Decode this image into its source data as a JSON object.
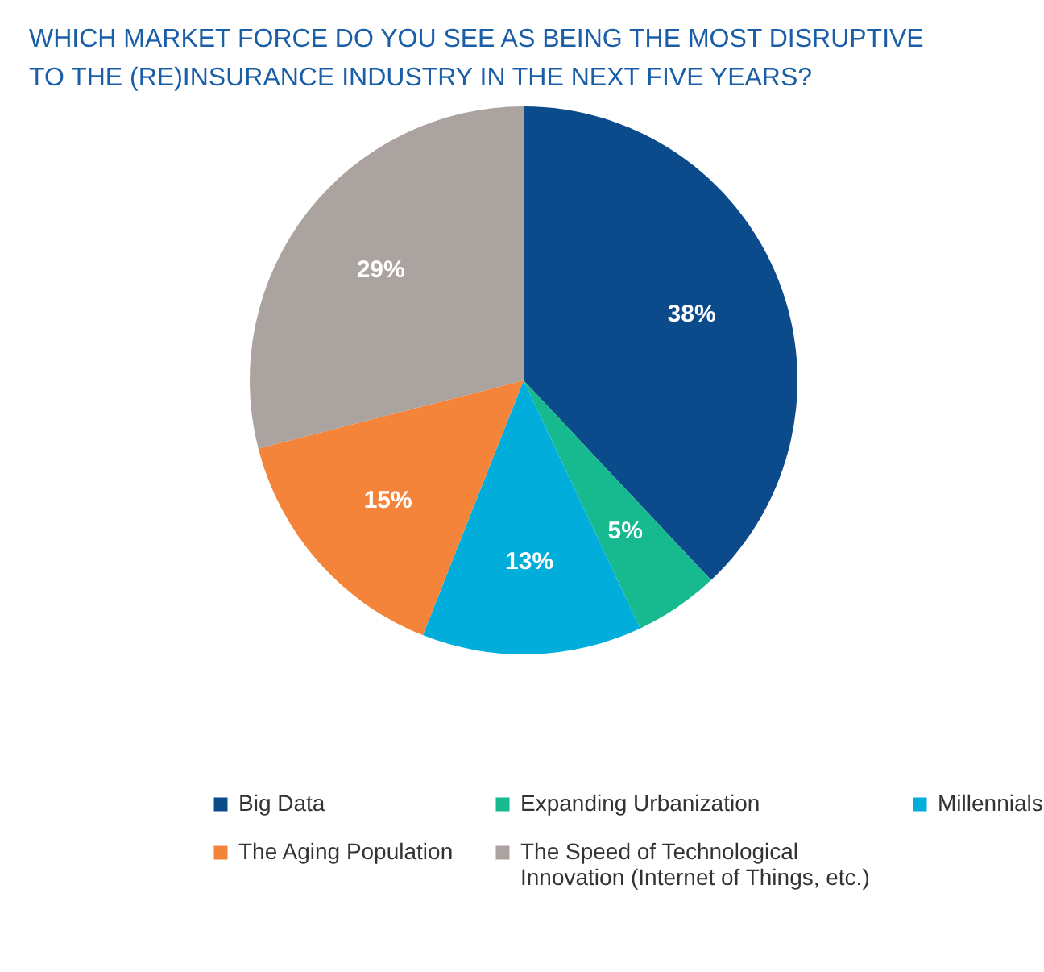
{
  "chart_data": {
    "type": "pie",
    "title": "WHICH MARKET FORCE DO YOU SEE AS BEING THE MOST DISRUPTIVE TO THE (RE)INSURANCE INDUSTRY IN THE NEXT FIVE YEARS?",
    "categories": [
      "Big Data",
      "Expanding Urbanization",
      "Millennials",
      "The Aging Population",
      "The Speed of Technological Innovation (Internet of Things, etc.)"
    ],
    "values": [
      38,
      5,
      13,
      15,
      29
    ],
    "colors": [
      "#0b4a8b",
      "#17b98f",
      "#00addb",
      "#f5843b",
      "#aaa3a0"
    ],
    "value_labels": [
      "38%",
      "5%",
      "13%",
      "15%",
      "29%"
    ],
    "legend": "bottom"
  }
}
